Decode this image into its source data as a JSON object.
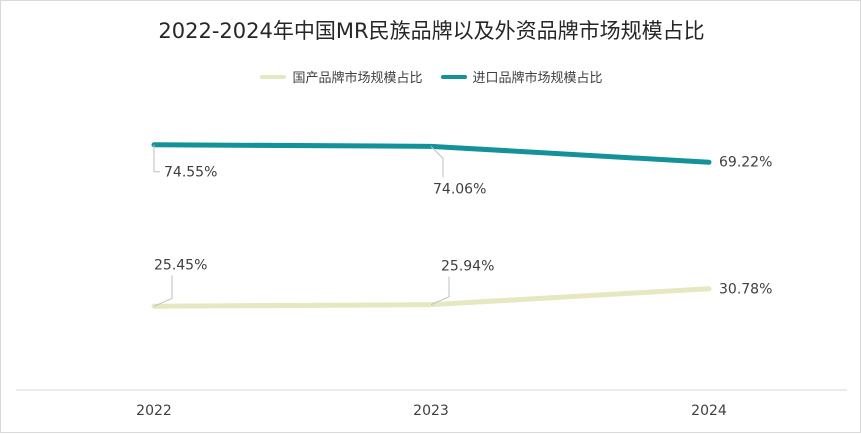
{
  "chart_data": {
    "type": "line",
    "title": "2022-2024年中国MR民族品牌以及外资品牌市场规模占比",
    "categories": [
      "2022",
      "2023",
      "2024"
    ],
    "series": [
      {
        "name": "国产品牌市场规模占比",
        "values": [
          25.45,
          25.94,
          30.78
        ],
        "labels": [
          "25.45%",
          "25.94%",
          "30.78%"
        ],
        "color": "#e5e8c0"
      },
      {
        "name": "进口品牌市场规模占比",
        "values": [
          74.55,
          74.06,
          69.22
        ],
        "labels": [
          "74.55%",
          "74.06%",
          "69.22%"
        ],
        "color": "#13929a"
      }
    ],
    "ylim": [
      0,
      100
    ],
    "grid": false,
    "legend": "top-center"
  }
}
